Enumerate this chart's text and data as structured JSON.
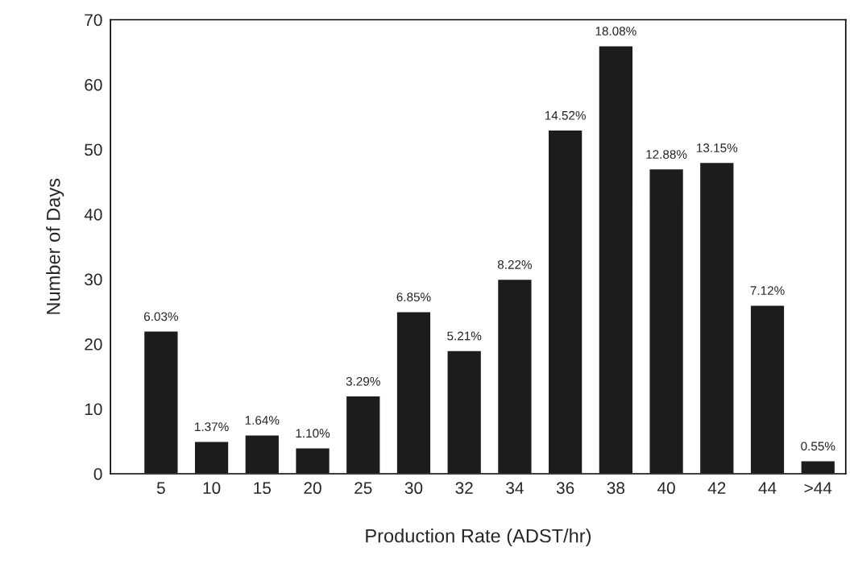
{
  "chart_data": {
    "type": "bar",
    "xlabel": "Production Rate (ADST/hr)",
    "ylabel": "Number of Days",
    "categories": [
      "5",
      "10",
      "15",
      "20",
      "25",
      "30",
      "32",
      "34",
      "36",
      "38",
      "40",
      "42",
      "44",
      ">44"
    ],
    "values": [
      22,
      5,
      6,
      4,
      12,
      25,
      19,
      30,
      53,
      66,
      47,
      48,
      26,
      2
    ],
    "annotations": [
      {
        "text": "6.03%",
        "x": "5",
        "y": 22
      },
      {
        "text": "1.37%",
        "x": "10",
        "y": 5
      },
      {
        "text": "1.64%",
        "x": "15",
        "y": 6
      },
      {
        "text": "1.10%",
        "x": "20",
        "y": 4
      },
      {
        "text": "3.29%",
        "x": "25",
        "y": 12
      },
      {
        "text": "6.85%",
        "x": "30",
        "y": 25
      },
      {
        "text": "5.21%",
        "x": "32",
        "y": 19
      },
      {
        "text": "8.22%",
        "x": "34",
        "y": 30
      },
      {
        "text": "14.52%",
        "x": "36",
        "y": 53
      },
      {
        "text": "18.08%",
        "x": "38",
        "y": 66
      },
      {
        "text": "12.88%",
        "x": "40",
        "y": 47
      },
      {
        "text": "13.15%",
        "x": "42",
        "y": 48
      },
      {
        "text": "7.12%",
        "x": "44",
        "y": 26
      },
      {
        "text": "0.55%",
        "x": ">44",
        "y": 2
      }
    ],
    "color": "#1c1c1c",
    "ylim": [
      0,
      70
    ],
    "yticks": [
      0,
      10,
      20,
      30,
      40,
      50,
      60,
      70
    ],
    "grid": false,
    "legend": false
  }
}
